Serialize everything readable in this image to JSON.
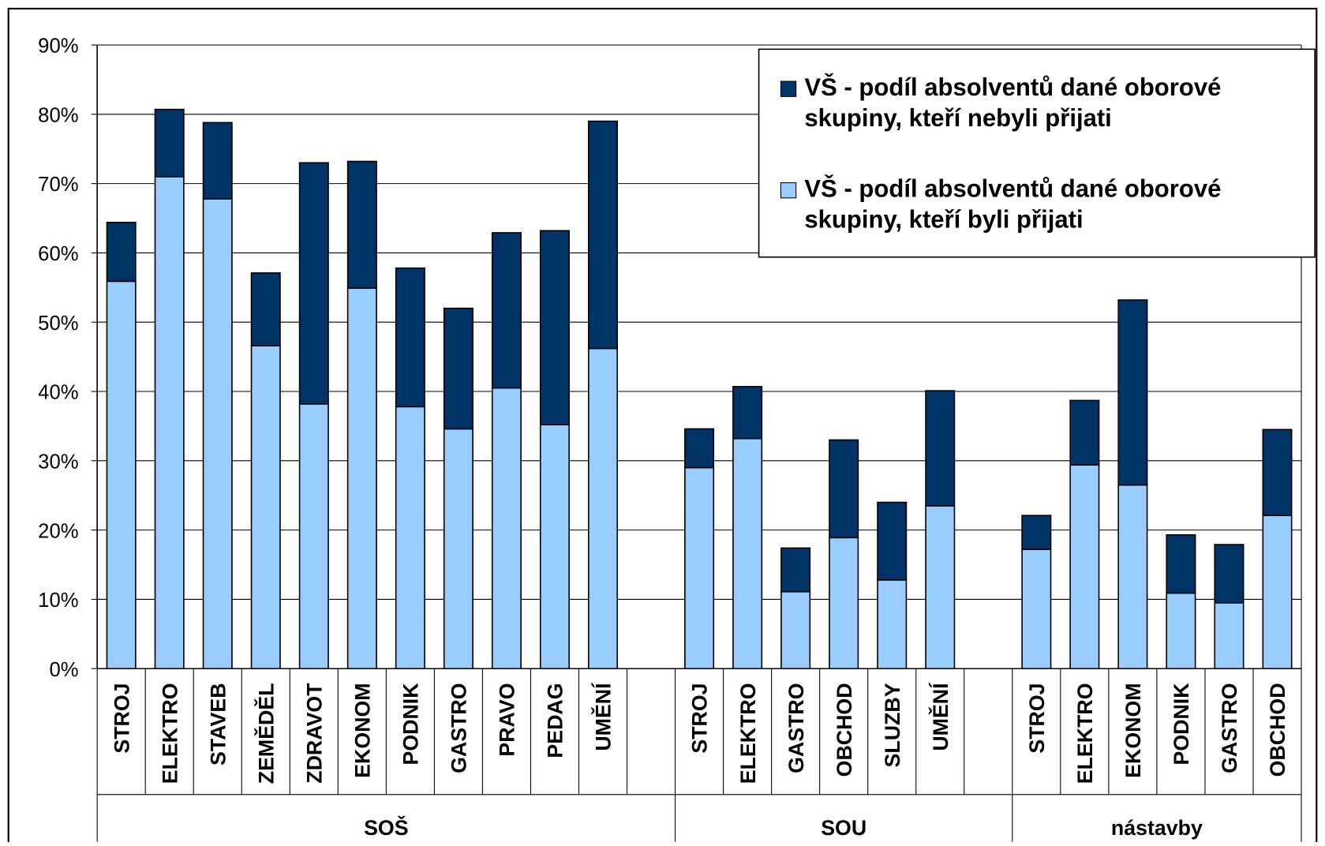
{
  "chart_data": {
    "type": "stacked-bar",
    "categories": [
      "STROJ",
      "ELEKTRO",
      "STAVEB",
      "ZEMĚDĚL",
      "ZDRAVOT",
      "EKONOM",
      "PODNIK",
      "GASTRO",
      "PRAVO",
      "PEDAG",
      "UMĚNÍ",
      null,
      "STROJ",
      "ELEKTRO",
      "GASTRO",
      "OBCHOD",
      "SLUZBY",
      "UMĚNÍ",
      null,
      "STROJ",
      "ELEKTRO",
      "EKONOM",
      "PODNIK",
      "GASTRO",
      "OBCHOD"
    ],
    "groups": [
      "SOŠ",
      "SOU",
      "nástavby"
    ],
    "series": [
      {
        "name": "VŠ - podíl absolventů dané oborové skupiny, kteří byli přijati",
        "color": "#99ccff",
        "values": [
          55.9,
          71.0,
          67.8,
          46.6,
          38.2,
          54.9,
          37.8,
          34.6,
          40.5,
          35.2,
          46.2,
          null,
          29.0,
          33.2,
          11.1,
          18.9,
          12.8,
          23.5,
          null,
          17.2,
          29.4,
          26.5,
          10.9,
          9.5,
          22.1
        ]
      },
      {
        "name": "VŠ - podíl absolventů dané oborové skupiny, kteří nebyli přijati",
        "color": "#003366",
        "values": [
          8.5,
          9.7,
          11.0,
          10.5,
          34.8,
          18.3,
          20.0,
          17.4,
          22.4,
          28.0,
          32.8,
          null,
          5.6,
          7.5,
          6.3,
          14.1,
          11.2,
          16.6,
          null,
          4.9,
          9.3,
          26.7,
          8.4,
          8.4,
          12.4
        ]
      }
    ],
    "ylim": [
      0,
      90
    ],
    "yticks": [
      {
        "value": 0,
        "label": "0%"
      },
      {
        "value": 10,
        "label": "10%"
      },
      {
        "value": 20,
        "label": "20%"
      },
      {
        "value": 30,
        "label": "30%"
      },
      {
        "value": 40,
        "label": "40%"
      },
      {
        "value": 50,
        "label": "50%"
      },
      {
        "value": 60,
        "label": "60%"
      },
      {
        "value": 70,
        "label": "70%"
      },
      {
        "value": 80,
        "label": "80%"
      },
      {
        "value": 90,
        "label": "90%"
      }
    ],
    "grid": true,
    "legend": "top-right"
  }
}
